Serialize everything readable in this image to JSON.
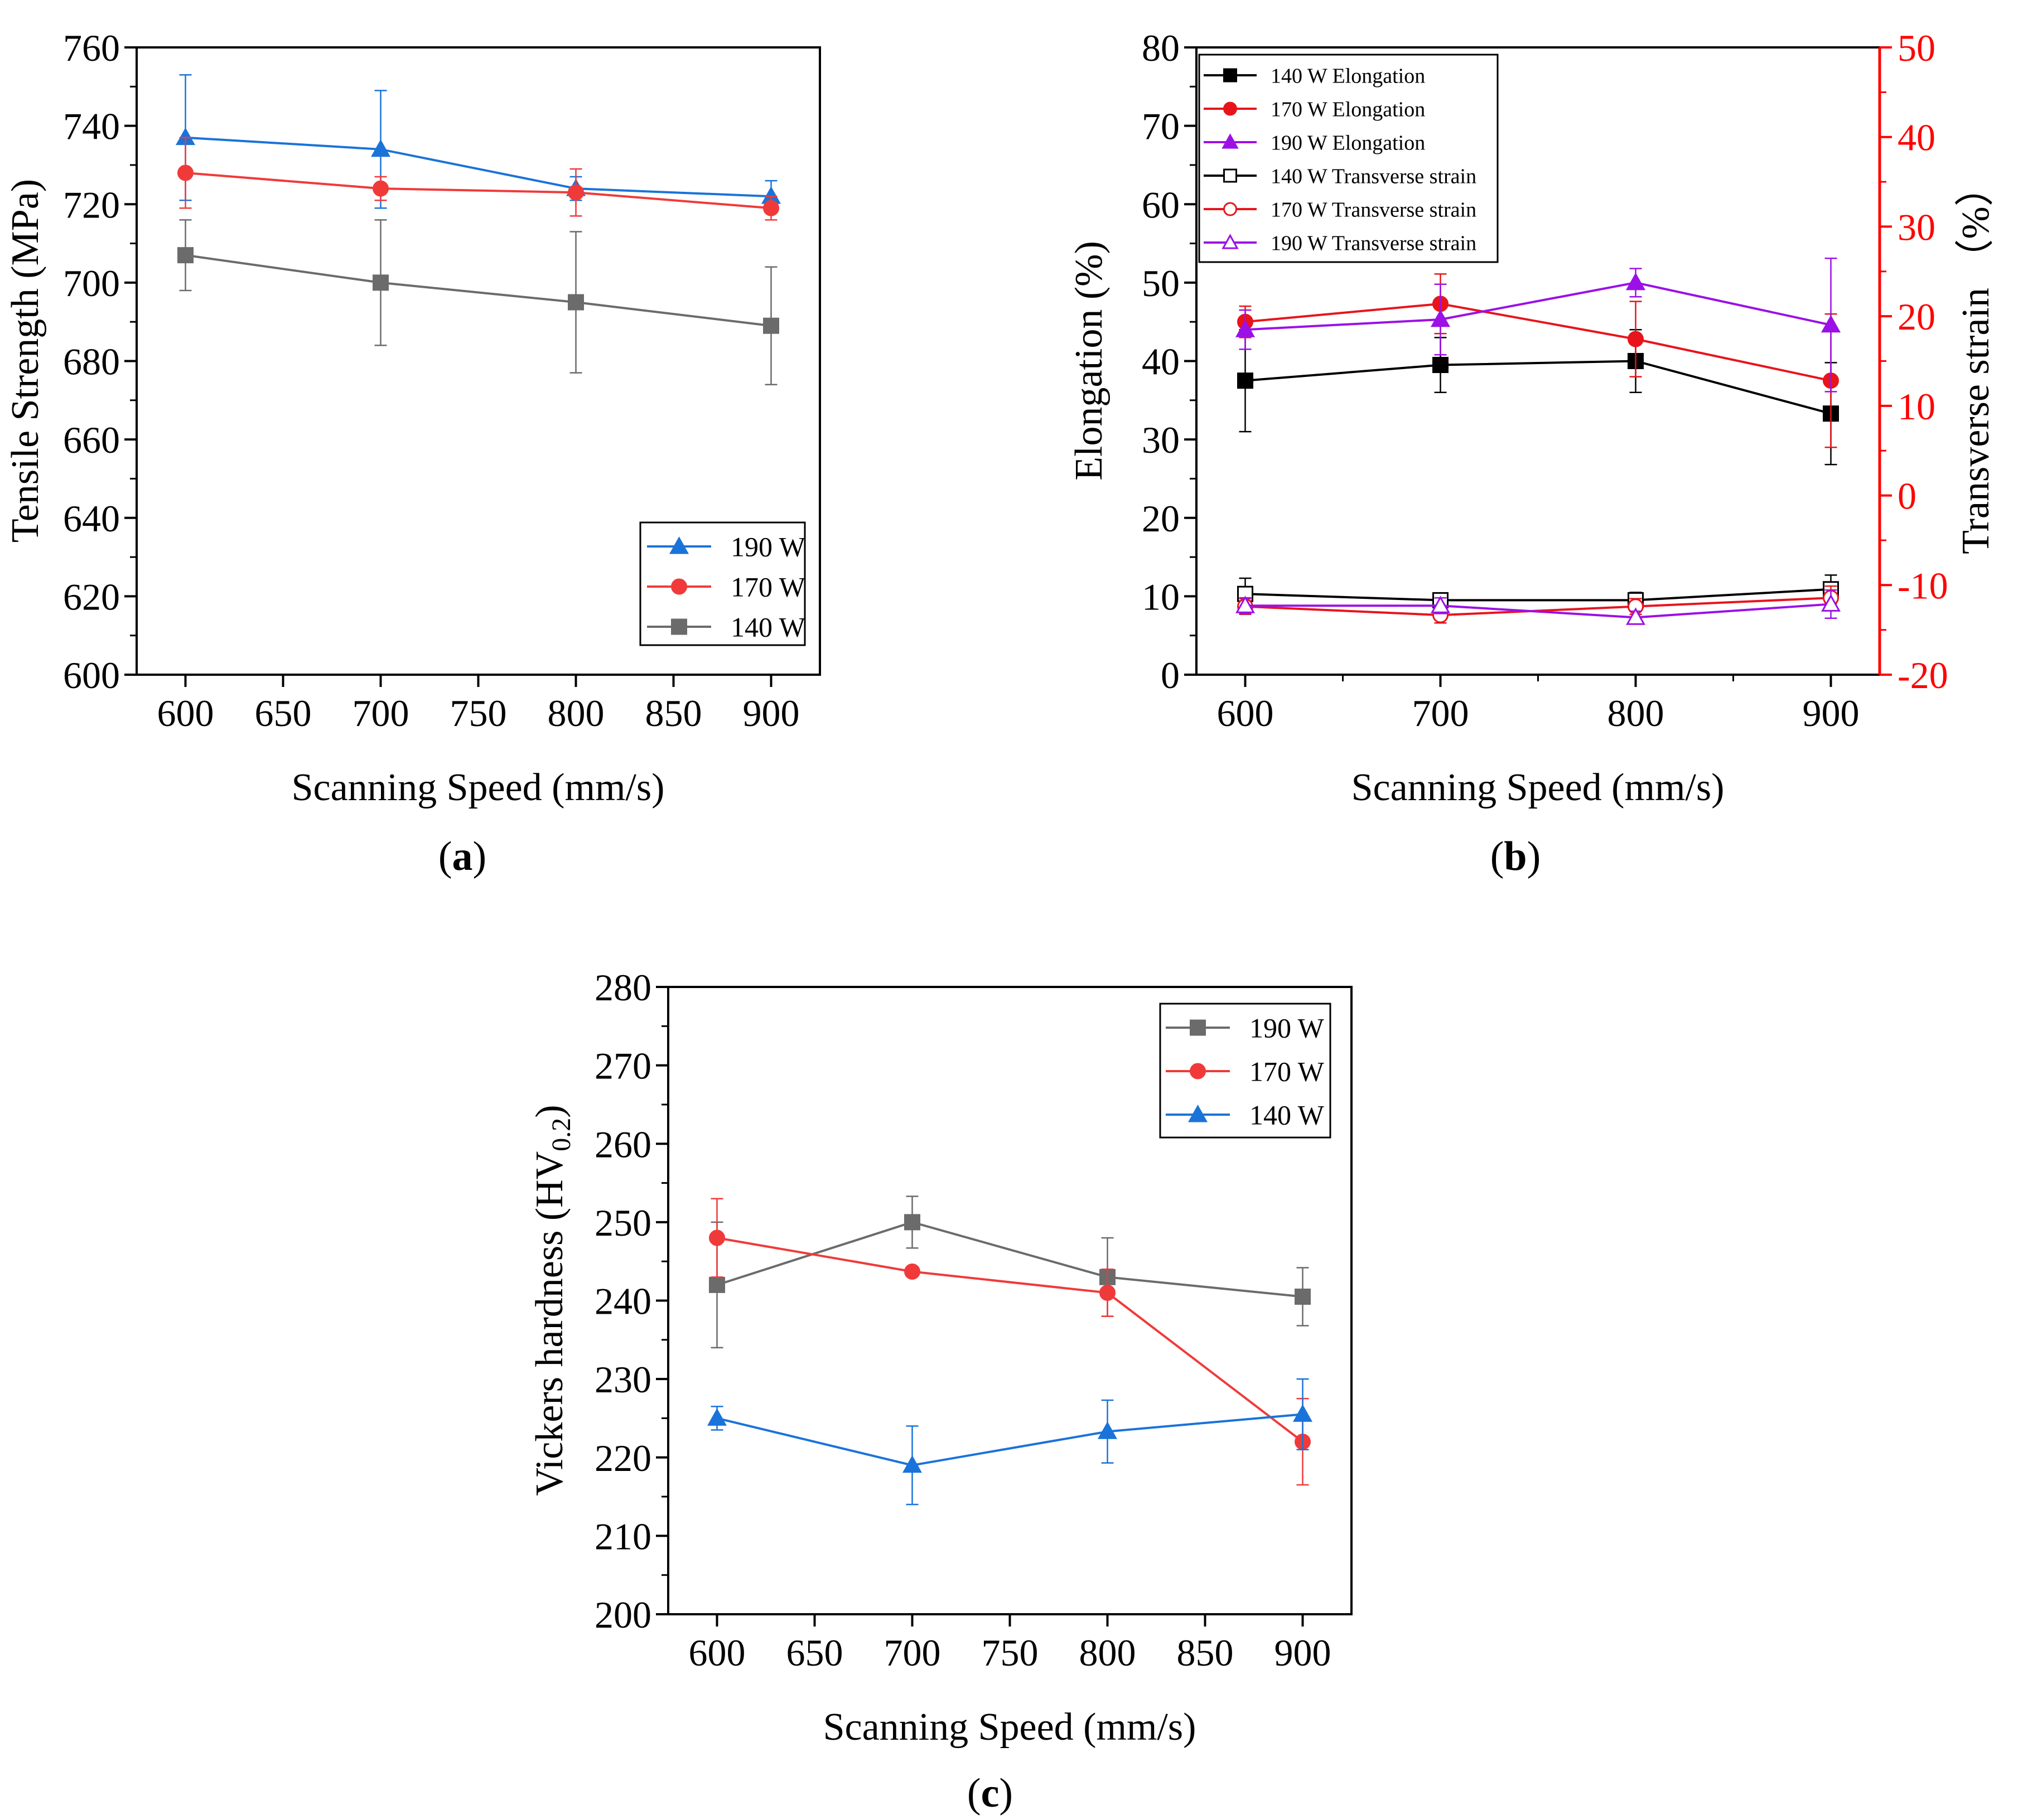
{
  "chart_data": [
    {
      "id": "a",
      "type": "line",
      "caption": "(a)",
      "caption_letter": "a",
      "xlabel": "Scanning Speed (mm/s)",
      "ylabel": "Tensile Strength (MPa)",
      "xlim": [
        575,
        925
      ],
      "ylim": [
        600,
        760
      ],
      "xticks": [
        600,
        650,
        700,
        750,
        800,
        850,
        900
      ],
      "yticks": [
        600,
        620,
        640,
        660,
        680,
        700,
        720,
        740,
        760
      ],
      "x": [
        600,
        700,
        800,
        900
      ],
      "legend_position": "bottom-right",
      "series": [
        {
          "name": "190 W",
          "color": "#1a73d9",
          "marker": "triangle",
          "values": [
            737,
            734,
            724,
            722
          ],
          "errors": [
            16,
            15,
            3,
            4
          ]
        },
        {
          "name": "170 W",
          "color": "#f03a3a",
          "marker": "circle",
          "values": [
            728,
            724,
            723,
            719
          ],
          "errors": [
            9,
            3,
            6,
            3
          ]
        },
        {
          "name": "140 W",
          "color": "#6b6b6b",
          "marker": "square",
          "values": [
            707,
            700,
            695,
            689
          ],
          "errors": [
            9,
            16,
            18,
            15
          ]
        }
      ]
    },
    {
      "id": "b",
      "type": "line",
      "caption": "(b)",
      "caption_letter": "b",
      "xlabel": "Scanning Speed (mm/s)",
      "ylabel": "Elongation (%)",
      "ylabel_right": "Transverse strain （%）",
      "xlim": [
        575,
        925
      ],
      "ylim": [
        0,
        80
      ],
      "ylim_right": [
        -20,
        50
      ],
      "xticks": [
        600,
        700,
        800,
        900
      ],
      "yticks": [
        0,
        10,
        20,
        30,
        40,
        50,
        60,
        70,
        80
      ],
      "yticks_right": [
        -20,
        -10,
        0,
        10,
        20,
        30,
        40,
        50
      ],
      "x": [
        600,
        700,
        800,
        900
      ],
      "legend_position": "top-left",
      "series": [
        {
          "name": "140 W Elongation",
          "color": "#000000",
          "marker": "square",
          "filled": true,
          "axis": "left",
          "values": [
            37.5,
            39.5,
            40,
            33.3
          ],
          "errors": [
            6.5,
            3.5,
            4,
            6.5
          ]
        },
        {
          "name": "170 W Elongation",
          "color": "#e8141c",
          "marker": "circle",
          "filled": true,
          "axis": "left",
          "values": [
            45,
            47.3,
            42.8,
            37.5
          ],
          "errors": [
            2,
            3.8,
            4.8,
            8.5
          ]
        },
        {
          "name": "190 W Elongation",
          "color": "#9b10e6",
          "marker": "triangle",
          "filled": true,
          "axis": "left",
          "values": [
            44,
            45.3,
            50,
            44.6
          ],
          "errors": [
            2.5,
            4.5,
            1.8,
            8.5
          ]
        },
        {
          "name": "140 W Transverse strain",
          "color": "#000000",
          "marker": "square",
          "filled": false,
          "axis": "left",
          "values": [
            10.3,
            9.5,
            9.5,
            10.9
          ],
          "errors": [
            2,
            0.8,
            1,
            1.8
          ]
        },
        {
          "name": "170 W Transverse strain",
          "color": "#e8141c",
          "marker": "circle",
          "filled": false,
          "axis": "left",
          "values": [
            8.7,
            7.6,
            8.7,
            9.8
          ],
          "errors": [
            1,
            1,
            1,
            1.5
          ]
        },
        {
          "name": "190 W Transverse strain",
          "color": "#9b10e6",
          "marker": "triangle",
          "filled": false,
          "axis": "left",
          "values": [
            8.8,
            8.8,
            7.3,
            9
          ],
          "errors": [
            1,
            1,
            0.8,
            1.8
          ]
        }
      ]
    },
    {
      "id": "c",
      "type": "line",
      "caption": "(c)",
      "caption_letter": "c",
      "xlabel": "Scanning Speed (mm/s)",
      "ylabel": "Vickers hardness (HV",
      "ylabel_sub": "0.2",
      "ylabel_close": ")",
      "xlim": [
        575,
        925
      ],
      "ylim": [
        200,
        280
      ],
      "xticks": [
        600,
        650,
        700,
        750,
        800,
        850,
        900
      ],
      "yticks": [
        200,
        210,
        220,
        230,
        240,
        250,
        260,
        270,
        280
      ],
      "x": [
        600,
        700,
        800,
        900
      ],
      "legend_position": "top-right",
      "series": [
        {
          "name": "190 W",
          "color": "#6b6b6b",
          "marker": "square",
          "values": [
            242,
            250,
            243,
            240.5
          ],
          "errors": [
            8,
            3.3,
            5,
            3.7
          ]
        },
        {
          "name": "170 W",
          "color": "#f03a3a",
          "marker": "circle",
          "values": [
            248,
            243.7,
            241,
            222
          ],
          "errors": [
            5,
            0.3,
            3,
            5.5
          ]
        },
        {
          "name": "140 W",
          "color": "#1a73d9",
          "marker": "triangle",
          "values": [
            225,
            219,
            223.3,
            225.5
          ],
          "errors": [
            1.5,
            5,
            4,
            4.5
          ]
        }
      ]
    }
  ]
}
